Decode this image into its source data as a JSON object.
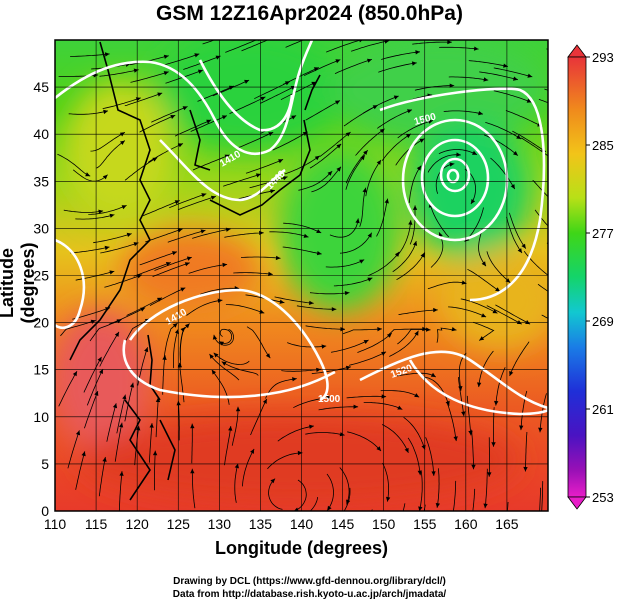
{
  "title": "GSM 12Z16Apr2024 (850.0hPa)",
  "xlabel": "Longitude (degrees)",
  "ylabel": "Latitude  (degrees)",
  "credits": [
    "Drawing by DCL (https://www.gfd-dennou.org/library/dcl/)",
    "Data from http://database.rish.kyoto-u.ac.jp/arch/jmadata/"
  ],
  "map": {
    "lon_range": [
      110,
      170
    ],
    "lat_range": [
      0,
      50
    ],
    "lon_ticks": [
      110,
      115,
      120,
      125,
      130,
      135,
      140,
      145,
      150,
      155,
      160,
      165
    ],
    "lat_ticks": [
      0,
      5,
      10,
      15,
      20,
      25,
      30,
      35,
      40,
      45
    ],
    "grid": true
  },
  "colorbar": {
    "labels": [
      "293",
      "285",
      "277",
      "269",
      "261",
      "253"
    ],
    "colors": [
      "#e8343a",
      "#f08a1c",
      "#f2c419",
      "#b8e017",
      "#3fd617",
      "#14d46a",
      "#12c8d0",
      "#1a7ce6",
      "#1f2fd8",
      "#4a13c2",
      "#9a10b6",
      "#e81ec8"
    ]
  },
  "contour_labels": [
    "1410",
    "1440",
    "1500",
    "1410",
    "1520",
    "1500"
  ]
}
